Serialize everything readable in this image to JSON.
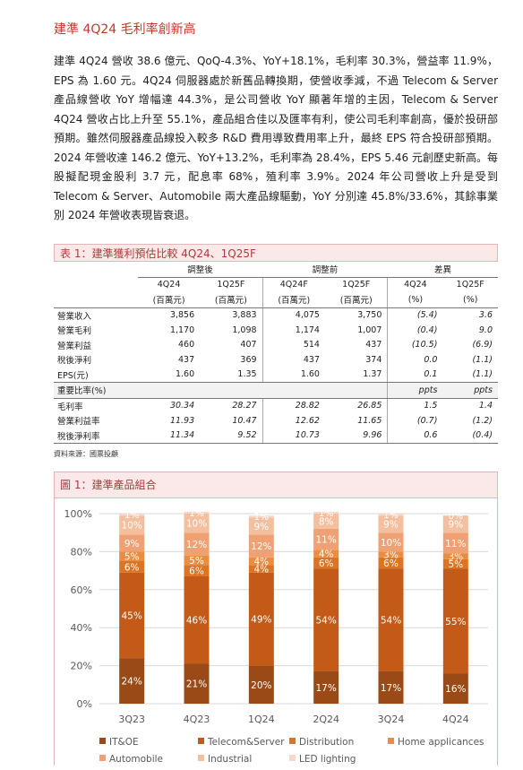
{
  "title": "建準 4Q24 毛利率創新高",
  "paragraph": "建準 4Q24 營收 38.6 億元、QoQ-4.3%、YoY+18.1%，毛利率 30.3%，營益率 11.9%，EPS 為 1.60 元。4Q24 伺服器處於新舊品轉換期，使營收季減，不過 Telecom & Server 產品線營收 YoY 增幅達 44.3%，是公司營收 YoY 顯著年增的主因，Telecom & Server 4Q24 營收占比上升至 55.1%，產品組合佳以及匯率有利，使公司毛利率創高，優於投研部預期。雖然伺服器產品線投入較多 R&D 費用導致費用率上升，最終 EPS 符合投研部預期。2024 年營收達 146.2 億元、YoY+13.2%，毛利率為 28.4%，EPS 5.46 元創歷史新高。每股擬配現金股利 3.7 元，配息率 68%，殖利率 3.9%。2024 年公司營收上升是受到 Telecom & Server、Automobile 兩大產品線驅動，YoY 分別達 45.8%/33.6%，其餘事業別 2024 年營收表現皆衰退。",
  "table": {
    "title": "表 1：建準獲利預估比較 4Q24、1Q25F",
    "groups": [
      "調整後",
      "調整前",
      "差異"
    ],
    "columns": [
      {
        "period": "4Q24",
        "unit": "(百萬元)"
      },
      {
        "period": "1Q25F",
        "unit": "(百萬元)"
      },
      {
        "period": "4Q24F",
        "unit": "(百萬元)"
      },
      {
        "period": "1Q25F",
        "unit": "(百萬元)"
      },
      {
        "period": "4Q24",
        "unit": "(%)"
      },
      {
        "period": "1Q25F",
        "unit": "(%)"
      }
    ],
    "rows": [
      {
        "label": "營業收入",
        "values": [
          "3,856",
          "3,883",
          "4,075",
          "3,750",
          "(5.4)",
          "3.6"
        ]
      },
      {
        "label": "營業毛利",
        "values": [
          "1,170",
          "1,098",
          "1,174",
          "1,007",
          "(0.4)",
          "9.0"
        ]
      },
      {
        "label": "營業利益",
        "values": [
          "460",
          "407",
          "514",
          "437",
          "(10.5)",
          "(6.9)"
        ]
      },
      {
        "label": "稅後淨利",
        "values": [
          "437",
          "369",
          "437",
          "374",
          "0.0",
          "(1.1)"
        ]
      },
      {
        "label": "EPS(元)",
        "values": [
          "1.60",
          "1.35",
          "1.60",
          "1.37",
          "0.1",
          "(1.1)"
        ]
      }
    ],
    "ratio_section": {
      "label": "重要比率(%)",
      "unit_a": "ppts",
      "unit_b": "ppts"
    },
    "ratio_rows": [
      {
        "label": "毛利率",
        "values": [
          "30.34",
          "28.27",
          "28.82",
          "26.85",
          "1.5",
          "1.4"
        ]
      },
      {
        "label": "營業利益率",
        "values": [
          "11.93",
          "10.47",
          "12.62",
          "11.65",
          "(0.7)",
          "(1.2)"
        ]
      },
      {
        "label": "稅後淨利率",
        "values": [
          "11.34",
          "9.52",
          "10.73",
          "9.96",
          "0.6",
          "(0.4)"
        ]
      }
    ],
    "source": "資料來源：國票投顧"
  },
  "figure": {
    "title": "圖 1：建準產品組合",
    "chart_data": {
      "type": "bar",
      "stacked": true,
      "categories": [
        "3Q23",
        "4Q23",
        "1Q24",
        "2Q24",
        "3Q24",
        "4Q24"
      ],
      "yticks": [
        "0%",
        "20%",
        "40%",
        "60%",
        "80%",
        "100%"
      ],
      "ylim": [
        0,
        100
      ],
      "grid": true,
      "legend_position": "bottom",
      "series": [
        {
          "name": "IT&OE",
          "color": "#9a4a17",
          "values": [
            24,
            21,
            20,
            17,
            17,
            16
          ],
          "labels": [
            "24%",
            "21%",
            "20%",
            "17%",
            "17%",
            "16%"
          ]
        },
        {
          "name": "Telecom&Server",
          "color": "#c45a17",
          "values": [
            45,
            46,
            49,
            54,
            54,
            55
          ],
          "labels": [
            "45%",
            "46%",
            "49%",
            "54%",
            "54%",
            "55%"
          ]
        },
        {
          "name": "Distribution",
          "color": "#dc7424",
          "values": [
            6,
            6,
            4,
            6,
            6,
            5
          ],
          "labels": [
            "6%",
            "6%",
            "4%",
            "6%",
            "6%",
            "5%"
          ]
        },
        {
          "name": "Home applicances",
          "color": "#ea8d3f",
          "values": [
            5,
            5,
            4,
            4,
            3,
            3
          ],
          "labels": [
            "5%",
            "5%",
            "4%",
            "4%",
            "3%",
            "3%"
          ]
        },
        {
          "name": "Automobile",
          "color": "#f0a173",
          "values": [
            9,
            12,
            12,
            11,
            10,
            11
          ],
          "labels": [
            "9%",
            "12%",
            "12%",
            "11%",
            "10%",
            "11%"
          ]
        },
        {
          "name": "Industrial",
          "color": "#f4bf9e",
          "values": [
            10,
            10,
            9,
            8,
            9,
            9
          ],
          "labels": [
            "10%",
            "10%",
            "9%",
            "8%",
            "9%",
            "9%"
          ]
        },
        {
          "name": "LED lighting",
          "color": "#f8d8c8",
          "values": [
            1,
            1,
            1,
            1,
            1,
            0
          ],
          "labels": [
            "1%",
            "1%",
            "1%",
            "1%",
            "1%",
            "0%"
          ]
        }
      ]
    }
  },
  "colors": {
    "accent": "#c0392b",
    "header_bg": "#fbe9e9"
  }
}
